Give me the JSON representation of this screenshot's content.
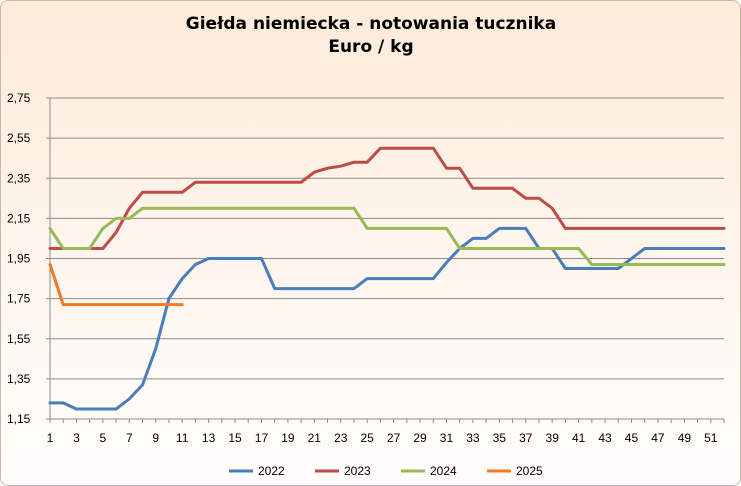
{
  "chart_data": {
    "type": "line",
    "title": "Giełda niemiecka  - notowania tucznika",
    "subtitle": "Euro / kg",
    "xlabel": "",
    "ylabel": "",
    "xlim": [
      1,
      52
    ],
    "ylim": [
      1.15,
      2.75
    ],
    "y_ticks": [
      "2,75",
      "2,55",
      "2,35",
      "2,15",
      "1,95",
      "1,75",
      "1,55",
      "1,35",
      "1,15"
    ],
    "y_tick_values": [
      2.75,
      2.55,
      2.35,
      2.15,
      1.95,
      1.75,
      1.55,
      1.35,
      1.15
    ],
    "x_ticks": [
      "1",
      "3",
      "5",
      "7",
      "9",
      "11",
      "13",
      "15",
      "17",
      "19",
      "21",
      "23",
      "25",
      "27",
      "29",
      "31",
      "33",
      "35",
      "37",
      "39",
      "41",
      "43",
      "45",
      "47",
      "49",
      "51"
    ],
    "grid": "horizontal",
    "legend_position": "bottom",
    "series": [
      {
        "name": "2022",
        "color": "#4a7ebb",
        "x": [
          1,
          2,
          3,
          4,
          5,
          6,
          7,
          8,
          9,
          10,
          11,
          12,
          13,
          14,
          15,
          16,
          17,
          18,
          19,
          20,
          21,
          22,
          23,
          24,
          25,
          26,
          27,
          28,
          29,
          30,
          31,
          32,
          33,
          34,
          35,
          36,
          37,
          38,
          39,
          40,
          41,
          42,
          43,
          44,
          45,
          46,
          47,
          48,
          49,
          50,
          51,
          52
        ],
        "values": [
          1.23,
          1.23,
          1.2,
          1.2,
          1.2,
          1.2,
          1.25,
          1.32,
          1.5,
          1.75,
          1.85,
          1.92,
          1.95,
          1.95,
          1.95,
          1.95,
          1.95,
          1.8,
          1.8,
          1.8,
          1.8,
          1.8,
          1.8,
          1.8,
          1.85,
          1.85,
          1.85,
          1.85,
          1.85,
          1.85,
          1.93,
          2.0,
          2.05,
          2.05,
          2.1,
          2.1,
          2.1,
          2.0,
          2.0,
          1.9,
          1.9,
          1.9,
          1.9,
          1.9,
          1.95,
          2.0,
          2.0,
          2.0,
          2.0,
          2.0,
          2.0,
          2.0
        ]
      },
      {
        "name": "2023",
        "color": "#be4b48",
        "x": [
          1,
          2,
          3,
          4,
          5,
          6,
          7,
          8,
          9,
          10,
          11,
          12,
          13,
          14,
          15,
          16,
          17,
          18,
          19,
          20,
          21,
          22,
          23,
          24,
          25,
          26,
          27,
          28,
          29,
          30,
          31,
          32,
          33,
          34,
          35,
          36,
          37,
          38,
          39,
          40,
          41,
          42,
          43,
          44,
          45,
          46,
          47,
          48,
          49,
          50,
          51,
          52
        ],
        "values": [
          2.0,
          2.0,
          2.0,
          2.0,
          2.0,
          2.08,
          2.2,
          2.28,
          2.28,
          2.28,
          2.28,
          2.33,
          2.33,
          2.33,
          2.33,
          2.33,
          2.33,
          2.33,
          2.33,
          2.33,
          2.38,
          2.4,
          2.41,
          2.43,
          2.43,
          2.5,
          2.5,
          2.5,
          2.5,
          2.5,
          2.4,
          2.4,
          2.3,
          2.3,
          2.3,
          2.3,
          2.25,
          2.25,
          2.2,
          2.1,
          2.1,
          2.1,
          2.1,
          2.1,
          2.1,
          2.1,
          2.1,
          2.1,
          2.1,
          2.1,
          2.1,
          2.1
        ]
      },
      {
        "name": "2024",
        "color": "#98b954",
        "x": [
          1,
          2,
          3,
          4,
          5,
          6,
          7,
          8,
          9,
          10,
          11,
          12,
          13,
          14,
          15,
          16,
          17,
          18,
          19,
          20,
          21,
          22,
          23,
          24,
          25,
          26,
          27,
          28,
          29,
          30,
          31,
          32,
          33,
          34,
          35,
          36,
          37,
          38,
          39,
          40,
          41,
          42,
          43,
          44,
          45,
          46,
          47,
          48,
          49,
          50,
          51,
          52
        ],
        "values": [
          2.1,
          2.0,
          2.0,
          2.0,
          2.1,
          2.15,
          2.15,
          2.2,
          2.2,
          2.2,
          2.2,
          2.2,
          2.2,
          2.2,
          2.2,
          2.2,
          2.2,
          2.2,
          2.2,
          2.2,
          2.2,
          2.2,
          2.2,
          2.2,
          2.1,
          2.1,
          2.1,
          2.1,
          2.1,
          2.1,
          2.1,
          2.0,
          2.0,
          2.0,
          2.0,
          2.0,
          2.0,
          2.0,
          2.0,
          2.0,
          2.0,
          1.92,
          1.92,
          1.92,
          1.92,
          1.92,
          1.92,
          1.92,
          1.92,
          1.92,
          1.92,
          1.92
        ]
      },
      {
        "name": "2025",
        "color": "#f07b24",
        "x": [
          1,
          2,
          3,
          4,
          5,
          6,
          7,
          8,
          9,
          10,
          11
        ],
        "values": [
          1.92,
          1.72,
          1.72,
          1.72,
          1.72,
          1.72,
          1.72,
          1.72,
          1.72,
          1.72,
          1.72
        ]
      }
    ]
  }
}
